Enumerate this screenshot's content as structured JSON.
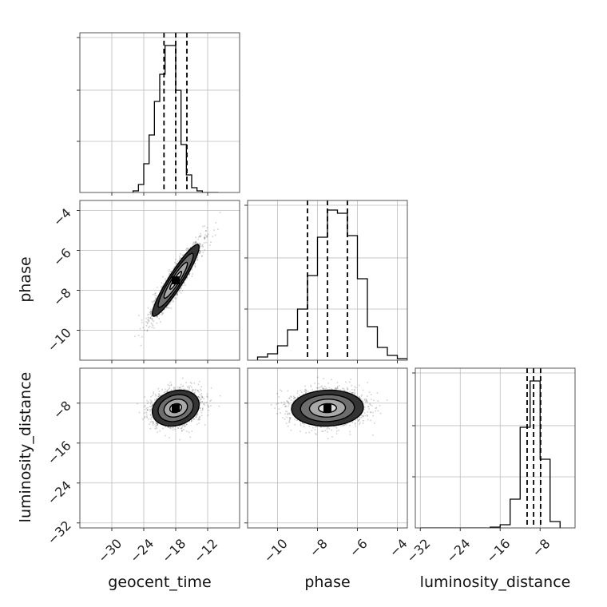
{
  "chart_data": {
    "type": "corner",
    "parameters": [
      "geocent_time",
      "phase",
      "luminosity_distance"
    ],
    "grid": true,
    "axes": {
      "geocent_time": {
        "range": [
          -36,
          -6
        ],
        "ticks": [
          -30,
          -24,
          -18,
          -12
        ],
        "tick_labels": [
          "−30",
          "−24",
          "−18",
          "−12"
        ]
      },
      "phase": {
        "range": [
          -11.5,
          -3.5
        ],
        "ticks": [
          -10,
          -8,
          -6,
          -4
        ],
        "tick_labels": [
          "−10",
          "−8",
          "−6",
          "−4"
        ]
      },
      "luminosity_distance": {
        "range": [
          -33,
          -1
        ],
        "ticks": [
          -32,
          -24,
          -16,
          -8
        ],
        "tick_labels": [
          "−32",
          "−24",
          "−16",
          "−8"
        ]
      }
    },
    "diagonal": [
      {
        "parameter": "geocent_time",
        "bin_edges": [
          -26,
          -25,
          -24,
          -23,
          -22,
          -21,
          -20,
          -19,
          -18,
          -17,
          -16,
          -15,
          -14,
          -13,
          -12,
          -11,
          -10
        ],
        "counts": [
          0.01,
          0.05,
          0.18,
          0.36,
          0.57,
          0.74,
          0.92,
          0.92,
          0.64,
          0.3,
          0.11,
          0.03,
          0.01,
          0,
          0,
          0
        ],
        "quantiles": [
          -20.2,
          -18.0,
          -15.9
        ]
      },
      {
        "parameter": "phase",
        "bin_edges": [
          -11,
          -10.5,
          -10,
          -9.5,
          -9,
          -8.5,
          -8,
          -7.5,
          -7,
          -6.5,
          -6,
          -5.5,
          -5,
          -4.5,
          -4,
          -3.5
        ],
        "counts": [
          0.02,
          0.04,
          0.09,
          0.19,
          0.32,
          0.53,
          0.77,
          0.94,
          0.92,
          0.78,
          0.51,
          0.21,
          0.08,
          0.03,
          0.01
        ],
        "quantiles": [
          -8.5,
          -7.5,
          -6.5
        ]
      },
      {
        "parameter": "luminosity_distance",
        "bin_edges": [
          -32,
          -30,
          -28,
          -26,
          -24,
          -22,
          -20,
          -18,
          -16,
          -14,
          -12,
          -10,
          -8,
          -6,
          -4
        ],
        "counts": [
          0,
          0,
          0,
          0,
          0,
          0,
          0,
          0.005,
          0.02,
          0.18,
          0.63,
          0.92,
          0.43,
          0.04
        ],
        "quantiles": [
          -10.6,
          -9.3,
          -7.9
        ]
      }
    ],
    "pairs": [
      {
        "x": "geocent_time",
        "y": "phase",
        "center": [
          -18,
          -7.5
        ],
        "std": [
          2.2,
          0.9
        ],
        "correlation": 0.93
      },
      {
        "x": "geocent_time",
        "y": "luminosity_distance",
        "center": [
          -18,
          -9
        ],
        "std": [
          2.2,
          1.8
        ],
        "correlation": 0.2
      },
      {
        "x": "phase",
        "y": "luminosity_distance",
        "center": [
          -7.5,
          -9
        ],
        "std": [
          0.9,
          1.8
        ],
        "correlation": 0.05
      }
    ],
    "contour_levels": [
      0.5,
      1.0,
      1.5,
      2.0
    ]
  }
}
